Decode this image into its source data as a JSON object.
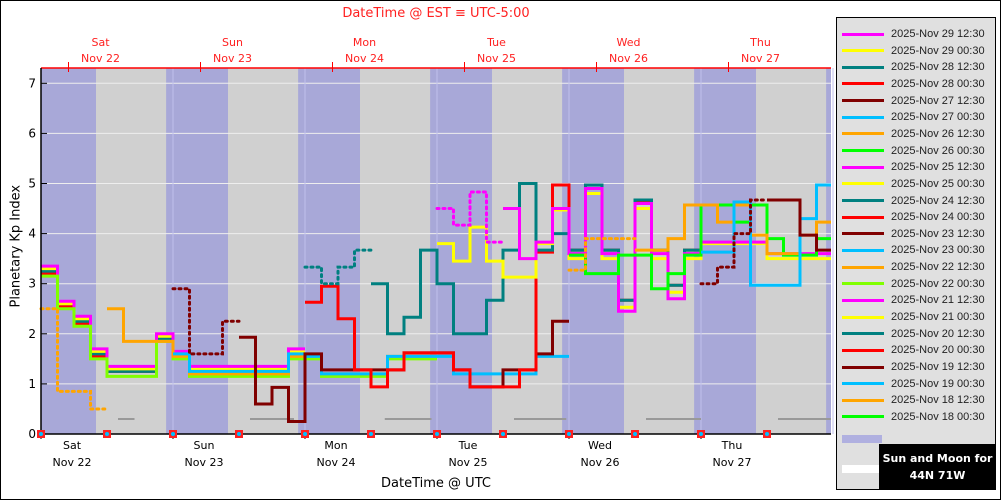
{
  "chart_data": {
    "type": "line",
    "title_top": "DateTime @ EST ≡ UTC-5:00",
    "xlabel": "DateTime @ UTC",
    "ylabel": "Planetary Kp Index",
    "ylim": [
      0,
      7.3
    ],
    "yticks": [
      "0",
      "1",
      "2",
      "3",
      "4",
      "5",
      "6",
      "7"
    ],
    "xlim": [
      "2025-11-22 00:00",
      "2025-11-28 00:00"
    ],
    "grid": true,
    "legend_position": "right",
    "bottom_ticks": [
      {
        "day": "Sat",
        "date": "Nov 22"
      },
      {
        "day": "Sun",
        "date": "Nov 23"
      },
      {
        "day": "Mon",
        "date": "Nov 24"
      },
      {
        "day": "Tue",
        "date": "Nov 25"
      },
      {
        "day": "Wed",
        "date": "Nov 26"
      },
      {
        "day": "Thu",
        "date": "Nov 27"
      }
    ],
    "top_ticks": [
      {
        "day": "Sat",
        "date": "Nov 22"
      },
      {
        "day": "Sun",
        "date": "Nov 23"
      },
      {
        "day": "Mon",
        "date": "Nov 24"
      },
      {
        "day": "Tue",
        "date": "Nov 25"
      },
      {
        "day": "Wed",
        "date": "Nov 26"
      },
      {
        "day": "Thu",
        "date": "Nov 27"
      }
    ],
    "colors": {
      "night": "#a8a8d8",
      "day": "#d0d0d0",
      "top_axis": "#ff0000",
      "gray_marker": "#999999"
    },
    "night_intervals": [
      [
        "2025-11-21 22:45",
        "2025-11-22 10:00"
      ],
      [
        "2025-11-22 22:45",
        "2025-11-23 10:00"
      ],
      [
        "2025-11-23 22:45",
        "2025-11-24 10:00"
      ],
      [
        "2025-11-24 22:45",
        "2025-11-25 10:00"
      ],
      [
        "2025-11-25 22:45",
        "2025-11-26 10:00"
      ],
      [
        "2025-11-26 22:45",
        "2025-11-27 10:00"
      ],
      [
        "2025-11-27 22:45",
        "2025-11-28 10:00"
      ]
    ],
    "gray_segments": [
      [
        "2025-11-22 14:00",
        "2025-11-22 17:00"
      ],
      [
        "2025-11-23 14:00",
        "2025-11-23 22:00"
      ],
      [
        "2025-11-24 14:30",
        "2025-11-24 23:00"
      ],
      [
        "2025-11-25 14:00",
        "2025-11-25 23:30"
      ],
      [
        "2025-11-26 14:00",
        "2025-11-27 00:00"
      ],
      [
        "2025-11-27 14:00",
        "2025-11-28 00:00"
      ]
    ],
    "gray_level": 0.3,
    "series": [
      {
        "name": "2025-Nov 29 12:30",
        "color": "#ff00ff",
        "segments": []
      },
      {
        "name": "2025-Nov 29 00:30",
        "color": "#ffff00",
        "segments": []
      },
      {
        "name": "2025-Nov 28 12:30",
        "color": "#008080",
        "segments": []
      },
      {
        "name": "2025-Nov 28 00:30",
        "color": "#ff0000",
        "segments": []
      },
      {
        "name": "2025-Nov 27 12:30",
        "color": "#800000",
        "segments": [
          {
            "style": "dotted",
            "start": "2025-11-27 00:00",
            "values": [
              3.0,
              3.33,
              4.0,
              4.67
            ]
          },
          {
            "style": "solid",
            "start": "2025-11-27 12:00",
            "values": [
              4.67,
              4.67,
              3.97,
              3.67
            ]
          }
        ]
      },
      {
        "name": "2025-Nov 27 00:30",
        "color": "#00bfff",
        "segments": [
          {
            "style": "solid",
            "start": "2025-11-27 00:00",
            "values": [
              3.63,
              3.63,
              4.63,
              2.97,
              2.97,
              2.97,
              4.3,
              4.97
            ]
          }
        ]
      },
      {
        "name": "2025-Nov 26 12:30",
        "color": "#ffa500",
        "segments": [
          {
            "style": "dotted",
            "start": "2025-11-26 00:00",
            "values": [
              3.27,
              3.9,
              3.9,
              3.9
            ]
          },
          {
            "style": "solid",
            "start": "2025-11-26 12:00",
            "values": [
              3.67,
              3.67,
              3.9,
              4.57,
              4.57,
              4.23,
              4.57,
              3.97,
              3.6,
              3.6,
              3.97,
              4.23
            ]
          }
        ]
      },
      {
        "name": "2025-Nov 26 00:30",
        "color": "#00ff00",
        "segments": [
          {
            "style": "solid",
            "start": "2025-11-26 00:00",
            "values": [
              3.57,
              3.2,
              3.2,
              3.57,
              3.57,
              2.9,
              3.2,
              3.57,
              4.57,
              4.57,
              4.23,
              4.57,
              3.9,
              3.57,
              3.57,
              3.9
            ]
          }
        ]
      },
      {
        "name": "2025-Nov 25 12:30",
        "color": "#ff00ff",
        "segments": [
          {
            "style": "dotted",
            "start": "2025-11-25 00:00",
            "values": [
              4.5,
              4.17,
              4.83,
              3.83
            ]
          },
          {
            "style": "solid",
            "start": "2025-11-25 12:00",
            "values": [
              4.5,
              3.5,
              3.83,
              4.5,
              3.6,
              4.9,
              3.6,
              2.45,
              4.6,
              3.6,
              2.7,
              3.6,
              3.83,
              3.83,
              3.83,
              3.83,
              3.6,
              3.6,
              3.6,
              3.6
            ]
          }
        ]
      },
      {
        "name": "2025-Nov 25 00:30",
        "color": "#ffff00",
        "segments": [
          {
            "style": "solid",
            "start": "2025-11-25 00:00",
            "values": [
              3.8,
              3.45,
              4.13,
              3.45,
              3.13,
              3.13,
              3.8,
              4.47,
              3.5,
              4.8,
              3.5,
              2.53,
              4.5,
              3.5,
              2.83,
              3.5,
              3.8,
              3.8,
              3.8,
              3.8,
              3.5,
              3.5,
              3.5,
              3.5
            ]
          }
        ]
      },
      {
        "name": "2025-Nov 24 12:30",
        "color": "#008080",
        "segments": [
          {
            "style": "dotted",
            "start": "2025-11-24 00:00",
            "values": [
              3.33,
              3.0,
              3.33,
              3.67
            ]
          },
          {
            "style": "solid",
            "start": "2025-11-24 12:00",
            "values": [
              3.0,
              2.0,
              2.33,
              3.67,
              3.0,
              2.0,
              2.0,
              2.67,
              3.67,
              5.0,
              3.67,
              4.0,
              3.67,
              4.97,
              3.67,
              2.67,
              4.67,
              3.67,
              2.97,
              3.67
            ]
          }
        ]
      },
      {
        "name": "2025-Nov 24 00:30",
        "color": "#ff0000",
        "segments": [
          {
            "style": "solid",
            "start": "2025-11-24 00:00",
            "values": [
              2.63,
              2.95,
              2.3,
              1.28,
              0.94,
              1.28,
              1.62,
              1.62,
              1.62,
              1.28,
              0.94,
              0.94,
              0.94,
              1.28,
              3.63,
              4.97,
              3.67,
              4.97,
              3.67,
              2.67,
              4.63,
              3.67,
              2.97,
              3.67
            ]
          }
        ]
      },
      {
        "name": "2025-Nov 23 12:30",
        "color": "#800000",
        "segments": [
          {
            "style": "dotted",
            "start": "2025-11-23 00:00",
            "values": [
              2.9,
              1.6,
              1.6,
              2.25
            ]
          },
          {
            "style": "solid",
            "start": "2025-11-23 12:00",
            "values": [
              1.93,
              0.6,
              0.93,
              0.25,
              1.6,
              1.28,
              1.28,
              1.28,
              1.28,
              1.28,
              1.62,
              1.62,
              1.62,
              1.28,
              0.94,
              0.94,
              1.28,
              1.28,
              1.6,
              2.25
            ]
          }
        ]
      },
      {
        "name": "2025-Nov 23 00:30",
        "color": "#00bfff",
        "segments": [
          {
            "style": "solid",
            "start": "2025-11-23 00:00",
            "values": [
              1.6,
              1.25,
              1.25,
              1.25,
              1.25,
              1.25,
              1.25,
              1.6,
              1.55,
              1.2,
              1.2,
              1.2,
              1.2,
              1.55,
              1.55,
              1.55,
              1.55,
              1.2,
              1.2,
              1.2,
              1.2,
              1.2,
              1.55,
              1.55
            ]
          }
        ]
      },
      {
        "name": "2025-Nov 22 12:30",
        "color": "#ffa500",
        "segments": [
          {
            "style": "dotted",
            "start": "2025-11-22 00:00",
            "values": [
              2.5,
              0.85,
              0.85,
              0.5
            ]
          },
          {
            "style": "solid",
            "start": "2025-11-22 12:00",
            "values": [
              2.5,
              1.85,
              1.85,
              1.85,
              1.55,
              1.2,
              1.2,
              1.2,
              1.2,
              1.2,
              1.2,
              1.55,
              1.55,
              1.2,
              1.2,
              1.2,
              1.2,
              1.55,
              1.55,
              1.55
            ]
          }
        ]
      },
      {
        "name": "2025-Nov 22 00:30",
        "color": "#80ff00",
        "segments": [
          {
            "style": "solid",
            "start": "2025-11-22 00:00",
            "values": [
              3.15,
              2.5,
              2.15,
              1.5,
              1.15,
              1.15,
              1.15,
              1.85,
              1.5,
              1.15,
              1.15,
              1.15,
              1.15,
              1.15,
              1.15,
              1.5,
              1.5,
              1.15,
              1.15,
              1.15,
              1.15,
              1.5,
              1.5,
              1.5
            ]
          }
        ]
      },
      {
        "name": "2025-Nov 21 12:30",
        "color": "#ff00ff",
        "segments": [
          {
            "style": "solid",
            "start": "2025-11-22 00:00",
            "values": [
              3.35,
              2.65,
              2.35,
              1.7,
              1.35,
              1.35,
              1.35,
              2.0,
              1.65,
              1.35,
              1.35,
              1.35,
              1.35,
              1.35,
              1.35,
              1.7
            ]
          }
        ]
      },
      {
        "name": "2025-Nov 21 00:30",
        "color": "#ffff00",
        "segments": [
          {
            "style": "solid",
            "start": "2025-11-22 00:00",
            "values": [
              3.3,
              2.6,
              2.3,
              1.65,
              1.3,
              1.3,
              1.3,
              1.95,
              1.6,
              1.3,
              1.3,
              1.3,
              1.3,
              1.3,
              1.3,
              1.65
            ]
          }
        ]
      },
      {
        "name": "2025-Nov 20 12:30",
        "color": "#008080",
        "segments": [
          {
            "style": "solid",
            "start": "2025-11-22 00:00",
            "values": [
              3.25,
              2.6,
              2.25,
              1.6,
              1.25,
              1.25,
              1.25,
              1.9
            ]
          }
        ]
      },
      {
        "name": "2025-Nov 20 00:30",
        "color": "#ff0000",
        "segments": [
          {
            "style": "solid",
            "start": "2025-11-22 00:00",
            "values": [
              3.2,
              2.55,
              2.2,
              1.55,
              1.25,
              1.25,
              1.25,
              1.9
            ]
          }
        ]
      },
      {
        "name": "2025-Nov 19 12:30",
        "color": "#800000",
        "segments": []
      },
      {
        "name": "2025-Nov 19 00:30",
        "color": "#00bfff",
        "segments": []
      },
      {
        "name": "2025-Nov 18 12:30",
        "color": "#ffa500",
        "segments": []
      },
      {
        "name": "2025-Nov 18 00:30",
        "color": "#00ff00",
        "segments": []
      }
    ],
    "sun_moon_label_1": "Sun and Moon for",
    "sun_moon_label_2": "44N 71W"
  }
}
